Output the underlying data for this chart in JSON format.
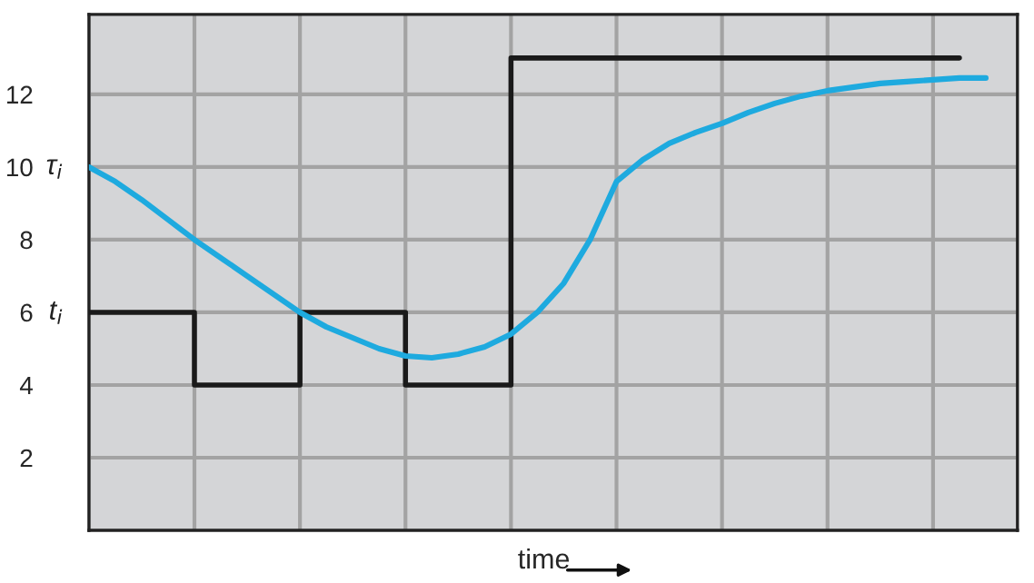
{
  "chart_data": {
    "type": "line",
    "xlabel": "time",
    "categories": [
      null,
      null,
      null,
      null,
      null,
      null,
      null,
      null,
      null,
      null,
      null,
      null,
      null,
      null,
      null,
      null,
      null,
      null,
      null,
      null,
      null,
      null,
      null,
      null,
      null,
      null,
      null,
      null,
      null,
      null,
      null,
      null,
      null,
      null,
      null
    ],
    "ylim": [
      0,
      14.2
    ],
    "yticks": [
      2,
      4,
      6,
      8,
      10,
      12
    ],
    "grid": true,
    "series": [
      {
        "name": "t$_{i}$",
        "type": "step",
        "color": "#1a1a1a",
        "values": [
          6,
          6,
          6,
          6,
          4,
          4,
          4,
          4,
          6,
          6,
          6,
          6,
          4,
          4,
          4,
          4,
          13,
          13,
          13,
          13,
          13,
          13,
          13,
          13,
          13,
          13,
          13,
          13,
          13,
          13,
          13,
          13,
          13,
          13,
          null
        ]
      },
      {
        "name": "τ$_{i}$",
        "color": "#1eaadf",
        "values": [
          10,
          9.6,
          9.1,
          8.55,
          8,
          7.5,
          7,
          6.5,
          6,
          5.6,
          5.3,
          5,
          4.8,
          4.75,
          4.85,
          5.05,
          5.4,
          6,
          6.8,
          8,
          9.6,
          10.2,
          10.65,
          10.95,
          11.2,
          11.5,
          11.75,
          11.95,
          12.1,
          12.2,
          12.3,
          12.35,
          12.4,
          12.45,
          12.45
        ]
      }
    ]
  }
}
